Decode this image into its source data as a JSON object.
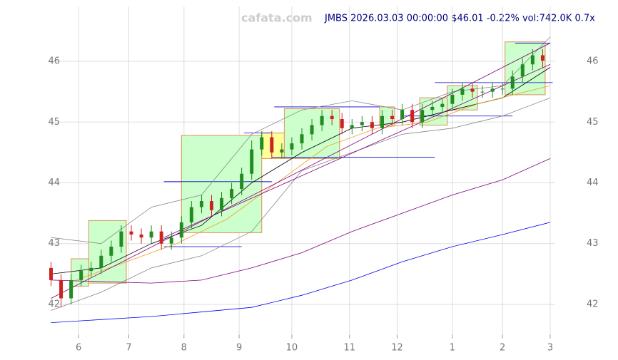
{
  "chart_data": {
    "type": "candlestick",
    "title": "JMBS 2026.03.03 00:00:00 $46.01 -0.22% vol:742.0K 0.7x",
    "watermark": "cafata.com",
    "x": [
      0,
      4,
      8,
      12,
      16,
      20,
      24,
      28,
      32,
      36,
      40,
      44,
      48,
      52,
      56,
      60,
      64,
      68,
      72,
      76,
      80,
      84,
      88,
      92,
      96,
      100,
      104,
      108,
      112,
      116,
      120,
      124,
      128,
      132,
      136,
      140,
      144,
      148,
      152,
      156,
      160,
      164,
      168,
      172,
      176,
      180,
      184,
      188,
      192,
      196
    ],
    "open": [
      42.6,
      42.4,
      42.1,
      42.4,
      42.55,
      42.6,
      42.8,
      42.95,
      43.2,
      43.15,
      43.1,
      43.2,
      43.0,
      43.1,
      43.35,
      43.6,
      43.7,
      43.55,
      43.75,
      43.9,
      44.15,
      44.55,
      44.75,
      44.5,
      44.55,
      44.65,
      44.8,
      44.95,
      45.1,
      45.05,
      44.9,
      44.95,
      45.0,
      44.9,
      45.1,
      45.05,
      45.2,
      45.0,
      45.2,
      45.25,
      45.3,
      45.45,
      45.55,
      45.5,
      45.5,
      45.55,
      45.55,
      45.75,
      45.95,
      46.1
    ],
    "high": [
      42.7,
      42.5,
      42.5,
      42.65,
      42.7,
      42.9,
      43.05,
      43.3,
      43.3,
      43.25,
      43.3,
      43.3,
      43.2,
      43.45,
      43.7,
      43.8,
      43.8,
      43.85,
      44.0,
      44.25,
      44.7,
      44.85,
      44.85,
      44.65,
      44.75,
      44.9,
      45.05,
      45.2,
      45.2,
      45.15,
      45.05,
      45.1,
      45.1,
      45.2,
      45.2,
      45.3,
      45.3,
      45.3,
      45.35,
      45.4,
      45.55,
      45.65,
      45.65,
      45.6,
      45.65,
      45.65,
      45.85,
      46.05,
      46.2,
      46.2
    ],
    "low": [
      42.3,
      41.95,
      42.0,
      42.3,
      42.45,
      42.5,
      42.7,
      42.85,
      43.05,
      43.0,
      43.0,
      42.9,
      42.9,
      43.0,
      43.25,
      43.5,
      43.45,
      43.45,
      43.65,
      43.8,
      44.05,
      44.45,
      44.4,
      44.4,
      44.45,
      44.55,
      44.7,
      44.85,
      44.95,
      44.8,
      44.8,
      44.85,
      44.8,
      44.8,
      44.95,
      44.95,
      44.9,
      44.9,
      45.1,
      45.15,
      45.2,
      45.35,
      45.4,
      45.4,
      45.4,
      45.45,
      45.45,
      45.65,
      45.85,
      45.9
    ],
    "close": [
      42.4,
      42.1,
      42.4,
      42.55,
      42.6,
      42.8,
      42.95,
      43.2,
      43.15,
      43.1,
      43.2,
      43.0,
      43.1,
      43.35,
      43.6,
      43.7,
      43.55,
      43.75,
      43.9,
      44.15,
      44.55,
      44.75,
      44.5,
      44.55,
      44.65,
      44.8,
      44.95,
      45.1,
      45.05,
      44.9,
      44.95,
      45.0,
      44.9,
      45.1,
      45.05,
      45.2,
      45.0,
      45.2,
      45.25,
      45.3,
      45.45,
      45.55,
      45.5,
      45.5,
      45.55,
      45.55,
      45.75,
      45.95,
      46.1,
      46.01
    ],
    "up_color": "#228b22",
    "down_color": "#cc2222",
    "boxes": [
      {
        "x": [
          8,
          15
        ],
        "y": [
          42.3,
          42.75
        ],
        "color": "#ccffcc",
        "edge": "#e0905a"
      },
      {
        "x": [
          15,
          30
        ],
        "y": [
          42.35,
          43.38
        ],
        "color": "#ccffcc",
        "edge": "#e0905a"
      },
      {
        "x": [
          52,
          84
        ],
        "y": [
          43.18,
          44.78
        ],
        "color": "#ccffcc",
        "edge": "#e0905a"
      },
      {
        "x": [
          84,
          93
        ],
        "y": [
          44.4,
          44.82
        ],
        "color": "#ffff99",
        "edge": "#e0905a"
      },
      {
        "x": [
          93,
          115
        ],
        "y": [
          44.4,
          45.22
        ],
        "color": "#ccffcc",
        "edge": "#e0905a"
      },
      {
        "x": [
          131,
          137
        ],
        "y": [
          44.95,
          45.25
        ],
        "color": "#ccffcc",
        "edge": "#e0905a"
      },
      {
        "x": [
          147,
          158
        ],
        "y": [
          44.95,
          45.4
        ],
        "color": "#ccffcc",
        "edge": "#e0905a"
      },
      {
        "x": [
          158,
          170
        ],
        "y": [
          45.2,
          45.6
        ],
        "color": "#ccffcc",
        "edge": "#e0905a"
      },
      {
        "x": [
          181,
          197
        ],
        "y": [
          45.45,
          46.32
        ],
        "color": "#ccffcc",
        "edge": "#e0905a"
      }
    ],
    "levels": [
      {
        "x": [
          45,
          88
        ],
        "y": 44.02,
        "color": "#0000cc"
      },
      {
        "x": [
          45,
          76
        ],
        "y": 42.95,
        "color": "#0000cc"
      },
      {
        "x": [
          77,
          88
        ],
        "y": 44.82,
        "color": "#0000cc"
      },
      {
        "x": [
          88,
          153
        ],
        "y": 44.42,
        "color": "#0000cc"
      },
      {
        "x": [
          89,
          131
        ],
        "y": 45.25,
        "color": "#0000cc"
      },
      {
        "x": [
          140,
          184
        ],
        "y": 45.1,
        "color": "#0000cc"
      },
      {
        "x": [
          153,
          200
        ],
        "y": 45.65,
        "color": "#0000cc"
      },
      {
        "x": [
          185,
          199
        ],
        "y": 46.3,
        "color": "#0000cc"
      }
    ],
    "lines": [
      {
        "color": "#888888",
        "x": [
          0,
          20,
          40,
          60,
          80,
          100,
          120,
          140,
          160,
          180,
          199
        ],
        "values": [
          43.1,
          43.0,
          43.6,
          43.8,
          44.8,
          45.2,
          45.35,
          45.2,
          45.5,
          45.6,
          46.4
        ]
      },
      {
        "color": "#888888",
        "x": [
          0,
          20,
          40,
          60,
          80,
          100,
          120,
          140,
          160,
          180,
          199
        ],
        "values": [
          41.9,
          42.2,
          42.6,
          42.8,
          43.2,
          44.2,
          44.5,
          44.8,
          44.9,
          45.1,
          45.4
        ]
      },
      {
        "color": "#000000",
        "x": [
          0,
          20,
          40,
          60,
          80,
          100,
          120,
          140,
          160,
          180,
          199
        ],
        "values": [
          42.5,
          42.6,
          43.0,
          43.3,
          44.0,
          44.5,
          44.9,
          45.0,
          45.2,
          45.4,
          45.9
        ]
      },
      {
        "color": "#f0a020",
        "x": [
          10,
          30,
          50,
          70,
          90,
          110,
          130,
          150,
          170,
          199
        ],
        "values": [
          42.4,
          42.7,
          43.0,
          43.4,
          44.0,
          44.6,
          44.9,
          45.0,
          45.3,
          45.6
        ]
      },
      {
        "color": "#800080",
        "x": [
          0,
          40,
          60,
          80,
          100,
          120,
          140,
          160,
          180,
          199
        ],
        "values": [
          42.4,
          42.35,
          42.4,
          42.6,
          42.85,
          43.2,
          43.5,
          43.8,
          44.05,
          44.4
        ]
      },
      {
        "color": "#0000ee",
        "x": [
          0,
          40,
          80,
          100,
          120,
          140,
          160,
          180,
          199
        ],
        "values": [
          41.7,
          41.8,
          41.95,
          42.15,
          42.4,
          42.7,
          42.95,
          43.15,
          43.35
        ]
      },
      {
        "color": "#800080",
        "x": [
          0,
          199
        ],
        "values": [
          42.1,
          46.3
        ]
      },
      {
        "color": "#800080",
        "x": [
          45,
          199
        ],
        "values": [
          43.1,
          45.95
        ]
      }
    ],
    "xlim": [
      -1,
      201
    ],
    "ylim": [
      41.5,
      46.9
    ],
    "xticks": [
      {
        "value": 11,
        "label": "6"
      },
      {
        "value": 31,
        "label": "7"
      },
      {
        "value": 53,
        "label": "8"
      },
      {
        "value": 75,
        "label": "9"
      },
      {
        "value": 96,
        "label": "10"
      },
      {
        "value": 119,
        "label": "11"
      },
      {
        "value": 138,
        "label": "12"
      },
      {
        "value": 160,
        "label": "1"
      },
      {
        "value": 180,
        "label": "2"
      },
      {
        "value": 199,
        "label": "3"
      }
    ],
    "yticks": [
      42,
      43,
      44,
      45,
      46
    ],
    "grid": true
  }
}
